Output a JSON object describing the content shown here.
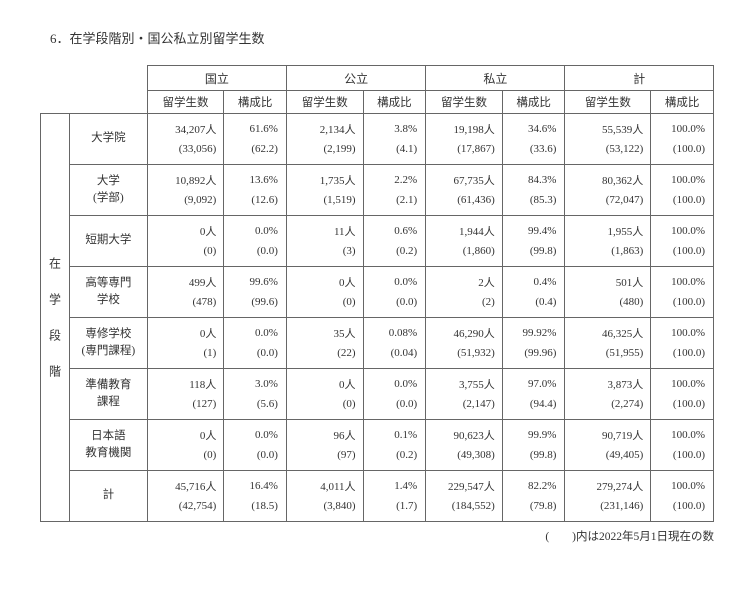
{
  "title": "6．在学段階別・国公私立別留学生数",
  "stub_label": "在学段階",
  "columns": {
    "groups": [
      "国立",
      "公立",
      "私立",
      "計"
    ],
    "subs": [
      "留学生数",
      "構成比"
    ]
  },
  "rows": [
    {
      "label": "大学院",
      "v": [
        "34,207人",
        "61.6%",
        "2,134人",
        "3.8%",
        "19,198人",
        "34.6%",
        "55,539人",
        "100.0%"
      ],
      "p": [
        "(33,056)",
        "(62.2)",
        "(2,199)",
        "(4.1)",
        "(17,867)",
        "(33.6)",
        "(53,122)",
        "(100.0)"
      ]
    },
    {
      "label": "大学\n(学部)",
      "v": [
        "10,892人",
        "13.6%",
        "1,735人",
        "2.2%",
        "67,735人",
        "84.3%",
        "80,362人",
        "100.0%"
      ],
      "p": [
        "(9,092)",
        "(12.6)",
        "(1,519)",
        "(2.1)",
        "(61,436)",
        "(85.3)",
        "(72,047)",
        "(100.0)"
      ]
    },
    {
      "label": "短期大学",
      "v": [
        "0人",
        "0.0%",
        "11人",
        "0.6%",
        "1,944人",
        "99.4%",
        "1,955人",
        "100.0%"
      ],
      "p": [
        "(0)",
        "(0.0)",
        "(3)",
        "(0.2)",
        "(1,860)",
        "(99.8)",
        "(1,863)",
        "(100.0)"
      ]
    },
    {
      "label": "高等専門\n学校",
      "v": [
        "499人",
        "99.6%",
        "0人",
        "0.0%",
        "2人",
        "0.4%",
        "501人",
        "100.0%"
      ],
      "p": [
        "(478)",
        "(99.6)",
        "(0)",
        "(0.0)",
        "(2)",
        "(0.4)",
        "(480)",
        "(100.0)"
      ]
    },
    {
      "label": "専修学校\n(専門課程)",
      "v": [
        "0人",
        "0.0%",
        "35人",
        "0.08%",
        "46,290人",
        "99.92%",
        "46,325人",
        "100.0%"
      ],
      "p": [
        "(1)",
        "(0.0)",
        "(22)",
        "(0.04)",
        "(51,932)",
        "(99.96)",
        "(51,955)",
        "(100.0)"
      ]
    },
    {
      "label": "準備教育\n課程",
      "v": [
        "118人",
        "3.0%",
        "0人",
        "0.0%",
        "3,755人",
        "97.0%",
        "3,873人",
        "100.0%"
      ],
      "p": [
        "(127)",
        "(5.6)",
        "(0)",
        "(0.0)",
        "(2,147)",
        "(94.4)",
        "(2,274)",
        "(100.0)"
      ]
    },
    {
      "label": "日本語\n教育機関",
      "v": [
        "0人",
        "0.0%",
        "96人",
        "0.1%",
        "90,623人",
        "99.9%",
        "90,719人",
        "100.0%"
      ],
      "p": [
        "(0)",
        "(0.0)",
        "(97)",
        "(0.2)",
        "(49,308)",
        "(99.8)",
        "(49,405)",
        "(100.0)"
      ]
    },
    {
      "label": "計",
      "v": [
        "45,716人",
        "16.4%",
        "4,011人",
        "1.4%",
        "229,547人",
        "82.2%",
        "279,274人",
        "100.0%"
      ],
      "p": [
        "(42,754)",
        "(18.5)",
        "(3,840)",
        "(1.7)",
        "(184,552)",
        "(79.8)",
        "(231,146)",
        "(100.0)"
      ]
    }
  ],
  "footnote": "(　　)内は2022年5月1日現在の数"
}
